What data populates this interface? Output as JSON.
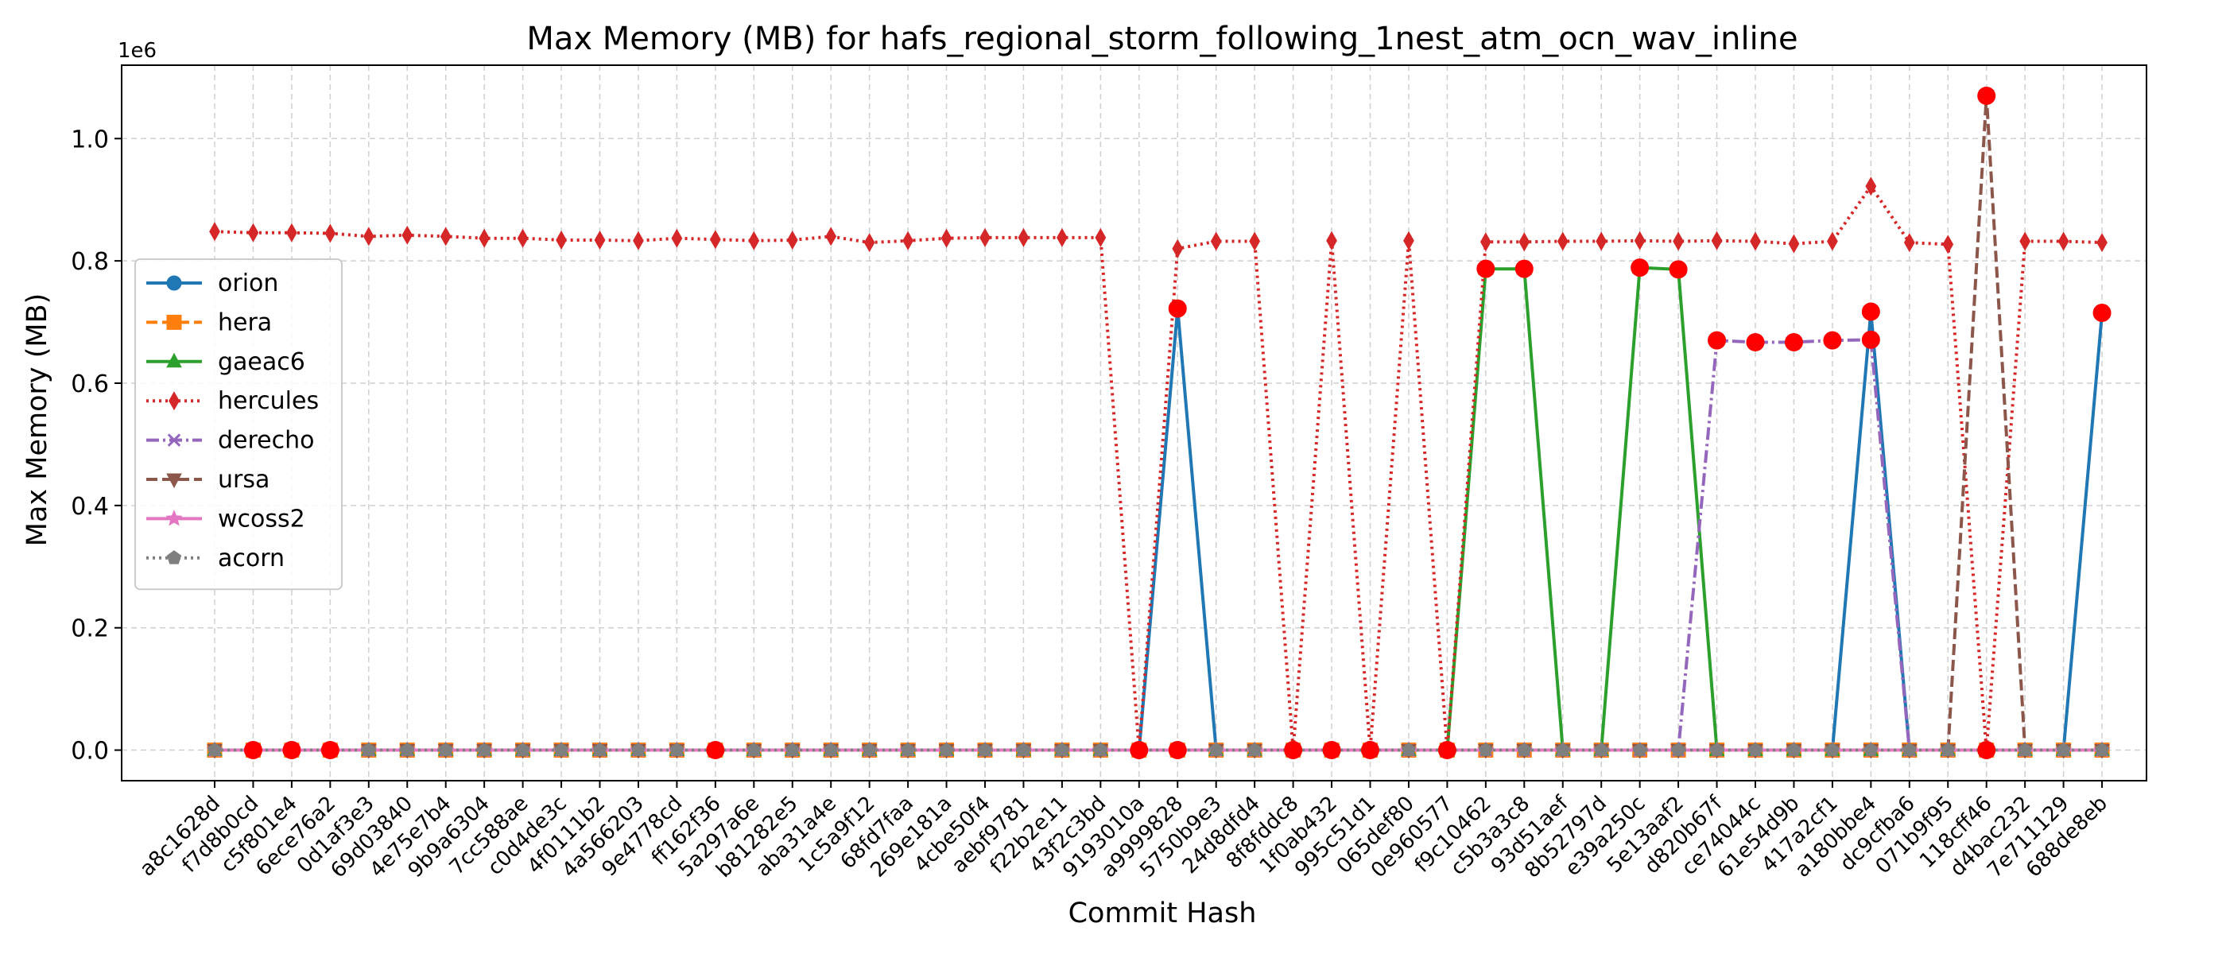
{
  "chart_data": {
    "type": "line",
    "title": "Max Memory (MB) for hafs_regional_storm_following_1nest_atm_ocn_wav_inline",
    "xlabel": "Commit Hash",
    "ylabel": "Max Memory (MB)",
    "y_scale_label": "1e6",
    "ylim": [
      -50000,
      1120000
    ],
    "yticks": [
      0,
      200000,
      400000,
      600000,
      800000,
      1000000
    ],
    "ytick_labels": [
      "0.0",
      "0.2",
      "0.4",
      "0.6",
      "0.8",
      "1.0"
    ],
    "grid": true,
    "legend_position": "center-left",
    "categories": [
      "a8c1628d",
      "f7d8b0cd",
      "c5f801e4",
      "6ece76a2",
      "0d1af3e3",
      "69d03840",
      "4e75e7b4",
      "9b9a6304",
      "7cc588ae",
      "c0d4de3c",
      "4f0111b2",
      "4a566203",
      "9e4778cd",
      "ff162f36",
      "5a297a6e",
      "b81282e5",
      "aba31a4e",
      "1c5a9f12",
      "68fd7faa",
      "269e181a",
      "4cbe50f4",
      "aebf9781",
      "f22b2e11",
      "43f2c3bd",
      "9193010a",
      "a9999828",
      "5750b9e3",
      "24d8dfd4",
      "8f8fddc8",
      "1f0ab432",
      "995c51d1",
      "065def80",
      "0e960577",
      "f9c10462",
      "c5b3a3c8",
      "93d51aef",
      "8b52797d",
      "e39a250c",
      "5e13aaf2",
      "d820b67f",
      "ce74044c",
      "61e54d9b",
      "417a2cf1",
      "a180bbe4",
      "dc9cfba6",
      "071b9f95",
      "118cff46",
      "d4bac232",
      "7e711129",
      "688de8eb"
    ],
    "series": [
      {
        "name": "orion",
        "color": "#1f77b4",
        "dash": "solid",
        "marker": "circle",
        "values": [
          0,
          0,
          0,
          0,
          0,
          0,
          0,
          0,
          0,
          0,
          0,
          0,
          0,
          0,
          0,
          0,
          0,
          0,
          0,
          0,
          0,
          0,
          0,
          0,
          0,
          722000,
          0,
          0,
          0,
          0,
          0,
          0,
          0,
          0,
          0,
          0,
          0,
          0,
          0,
          0,
          0,
          0,
          0,
          717000,
          0,
          0,
          0,
          0,
          0,
          715000
        ]
      },
      {
        "name": "hera",
        "color": "#ff7f0e",
        "dash": "dashed",
        "marker": "square",
        "values": [
          0,
          0,
          0,
          0,
          0,
          0,
          0,
          0,
          0,
          0,
          0,
          0,
          0,
          0,
          0,
          0,
          0,
          0,
          0,
          0,
          0,
          0,
          0,
          0,
          0,
          0,
          0,
          0,
          0,
          0,
          0,
          0,
          0,
          0,
          0,
          0,
          0,
          0,
          0,
          0,
          0,
          0,
          0,
          0,
          0,
          0,
          0,
          0,
          0,
          0
        ]
      },
      {
        "name": "gaeac6",
        "color": "#2ca02c",
        "dash": "solid",
        "marker": "triangle-up",
        "values": [
          0,
          0,
          0,
          0,
          0,
          0,
          0,
          0,
          0,
          0,
          0,
          0,
          0,
          0,
          0,
          0,
          0,
          0,
          0,
          0,
          0,
          0,
          0,
          0,
          0,
          0,
          0,
          0,
          0,
          0,
          0,
          0,
          0,
          787000,
          787000,
          0,
          0,
          789000,
          786000,
          0,
          0,
          0,
          0,
          0,
          0,
          0,
          0,
          0,
          0,
          0
        ]
      },
      {
        "name": "hercules",
        "color": "#d62728",
        "dash": "dotted",
        "marker": "diamond",
        "values": [
          848000,
          846000,
          846000,
          845000,
          840000,
          842000,
          840000,
          837000,
          837000,
          834000,
          834000,
          833000,
          837000,
          835000,
          833000,
          834000,
          840000,
          830000,
          833000,
          837000,
          838000,
          838000,
          838000,
          838000,
          0,
          820000,
          832000,
          832000,
          0,
          833000,
          0,
          833000,
          0,
          831000,
          831000,
          832000,
          832000,
          833000,
          832000,
          833000,
          832000,
          828000,
          832000,
          922000,
          830000,
          827000,
          0,
          832000,
          832000,
          830000
        ]
      },
      {
        "name": "derecho",
        "color": "#9467bd",
        "dash": "dashdot",
        "marker": "x",
        "values": [
          0,
          0,
          0,
          0,
          0,
          0,
          0,
          0,
          0,
          0,
          0,
          0,
          0,
          0,
          0,
          0,
          0,
          0,
          0,
          0,
          0,
          0,
          0,
          0,
          0,
          0,
          0,
          0,
          0,
          0,
          0,
          0,
          0,
          0,
          0,
          0,
          0,
          0,
          0,
          670000,
          667000,
          667000,
          670000,
          671000,
          0,
          0,
          0,
          0,
          0,
          0
        ]
      },
      {
        "name": "ursa",
        "color": "#8c564b",
        "dash": "dashed",
        "marker": "triangle-down",
        "values": [
          0,
          0,
          0,
          0,
          0,
          0,
          0,
          0,
          0,
          0,
          0,
          0,
          0,
          0,
          0,
          0,
          0,
          0,
          0,
          0,
          0,
          0,
          0,
          0,
          0,
          0,
          0,
          0,
          0,
          0,
          0,
          0,
          0,
          0,
          0,
          0,
          0,
          0,
          0,
          0,
          0,
          0,
          0,
          0,
          0,
          0,
          1070000,
          0,
          0,
          0
        ]
      },
      {
        "name": "wcoss2",
        "color": "#e377c2",
        "dash": "solid",
        "marker": "star",
        "values": [
          0,
          0,
          0,
          0,
          0,
          0,
          0,
          0,
          0,
          0,
          0,
          0,
          0,
          0,
          0,
          0,
          0,
          0,
          0,
          0,
          0,
          0,
          0,
          0,
          0,
          0,
          0,
          0,
          0,
          0,
          0,
          0,
          0,
          0,
          0,
          0,
          0,
          0,
          0,
          0,
          0,
          0,
          0,
          0,
          0,
          0,
          0,
          0,
          0,
          0
        ]
      },
      {
        "name": "acorn",
        "color": "#7f7f7f",
        "dash": "dotted",
        "marker": "pentagon",
        "values": [
          0,
          0,
          0,
          0,
          0,
          0,
          0,
          0,
          0,
          0,
          0,
          0,
          0,
          0,
          0,
          0,
          0,
          0,
          0,
          0,
          0,
          0,
          0,
          0,
          0,
          0,
          0,
          0,
          0,
          0,
          0,
          0,
          0,
          0,
          0,
          0,
          0,
          0,
          0,
          0,
          0,
          0,
          0,
          0,
          0,
          0,
          0,
          0,
          0,
          0
        ]
      }
    ],
    "highlights": {
      "color": "#ff0000",
      "points": [
        {
          "x": "f7d8b0cd",
          "y": 0
        },
        {
          "x": "c5f801e4",
          "y": 0
        },
        {
          "x": "6ece76a2",
          "y": 0
        },
        {
          "x": "ff162f36",
          "y": 0
        },
        {
          "x": "9193010a",
          "y": 0
        },
        {
          "x": "a9999828",
          "y": 0
        },
        {
          "x": "a9999828",
          "y": 722000
        },
        {
          "x": "8f8fddc8",
          "y": 0
        },
        {
          "x": "1f0ab432",
          "y": 0
        },
        {
          "x": "995c51d1",
          "y": 0
        },
        {
          "x": "0e960577",
          "y": 0
        },
        {
          "x": "f9c10462",
          "y": 787000
        },
        {
          "x": "c5b3a3c8",
          "y": 787000
        },
        {
          "x": "e39a250c",
          "y": 789000
        },
        {
          "x": "5e13aaf2",
          "y": 786000
        },
        {
          "x": "d820b67f",
          "y": 670000
        },
        {
          "x": "ce74044c",
          "y": 667000
        },
        {
          "x": "61e54d9b",
          "y": 667000
        },
        {
          "x": "417a2cf1",
          "y": 670000
        },
        {
          "x": "a180bbe4",
          "y": 717000
        },
        {
          "x": "a180bbe4",
          "y": 671000
        },
        {
          "x": "118cff46",
          "y": 1070000
        },
        {
          "x": "118cff46",
          "y": 0
        },
        {
          "x": "688de8eb",
          "y": 715000
        }
      ]
    }
  }
}
